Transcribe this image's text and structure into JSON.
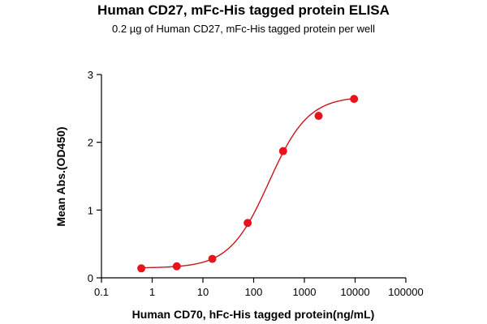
{
  "chart_data": {
    "type": "scatter",
    "title": "Human CD27, mFc-His tagged protein ELISA",
    "subtitle": "0.2 µg of Human CD27, mFc-His tagged protein per well",
    "xlabel": "Human CD70, hFc-His tagged protein(ng/mL)",
    "ylabel": "Mean Abs.(OD450)",
    "x_scale": "log",
    "xlim": [
      0.1,
      100000
    ],
    "ylim": [
      0,
      3
    ],
    "x_ticks": [
      "0.1",
      "1",
      "10",
      "100",
      "1000",
      "10000",
      "100000"
    ],
    "y_ticks": [
      "0",
      "1",
      "2",
      "3"
    ],
    "grid": false,
    "series": [
      {
        "points": [
          {
            "x": 0.61,
            "y": 0.14
          },
          {
            "x": 3.05,
            "y": 0.17
          },
          {
            "x": 15.3,
            "y": 0.28
          },
          {
            "x": 76.3,
            "y": 0.81
          },
          {
            "x": 381,
            "y": 1.87
          },
          {
            "x": 1907,
            "y": 2.39
          },
          {
            "x": 9537,
            "y": 2.64
          }
        ],
        "color": "#e8131b",
        "fit": {
          "model": "4PL",
          "bottom": 0.145,
          "top": 2.68,
          "ec50": 200,
          "hill": 1.12,
          "color": "#c8161d"
        }
      }
    ]
  }
}
